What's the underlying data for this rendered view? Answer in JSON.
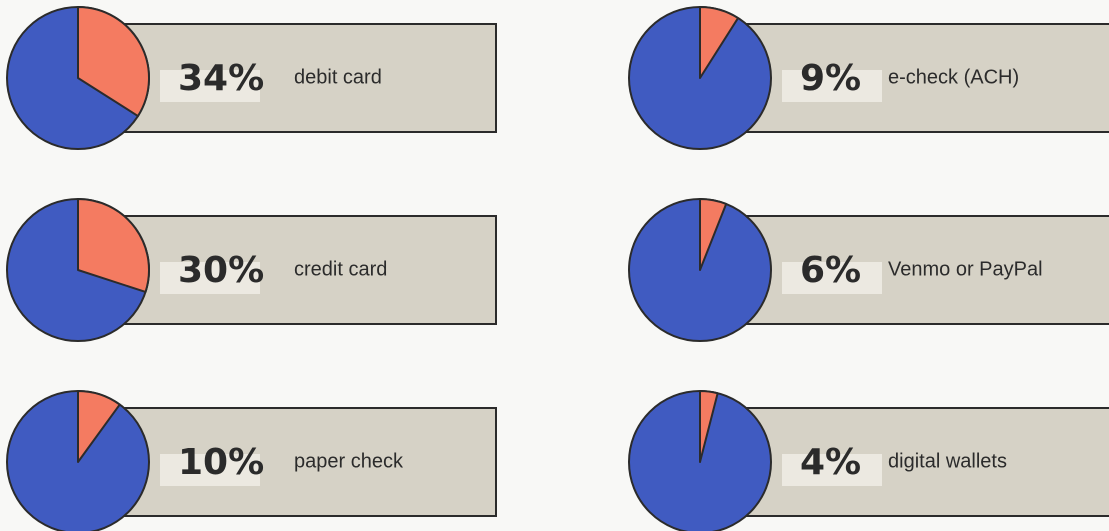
{
  "chart_data": [
    {
      "type": "pie",
      "categories": [
        "debit card"
      ],
      "values": [
        34
      ],
      "value_labels": [
        "34%"
      ],
      "color": "#f47b61",
      "rest_color": "#405bc1"
    },
    {
      "type": "pie",
      "categories": [
        "e-check (ACH)"
      ],
      "values": [
        9
      ],
      "value_labels": [
        "9%"
      ],
      "color": "#f47b61",
      "rest_color": "#405bc1"
    },
    {
      "type": "pie",
      "categories": [
        "credit card"
      ],
      "values": [
        30
      ],
      "value_labels": [
        "30%"
      ],
      "color": "#f47b61",
      "rest_color": "#405bc1"
    },
    {
      "type": "pie",
      "categories": [
        "Venmo or PayPal"
      ],
      "values": [
        6
      ],
      "value_labels": [
        "6%"
      ],
      "color": "#f47b61",
      "rest_color": "#405bc1"
    },
    {
      "type": "pie",
      "categories": [
        "paper check"
      ],
      "values": [
        10
      ],
      "value_labels": [
        "10%"
      ],
      "color": "#f47b61",
      "rest_color": "#405bc1"
    },
    {
      "type": "pie",
      "categories": [
        "digital wallets"
      ],
      "values": [
        4
      ],
      "value_labels": [
        "4%"
      ],
      "color": "#f47b61",
      "rest_color": "#405bc1"
    }
  ]
}
